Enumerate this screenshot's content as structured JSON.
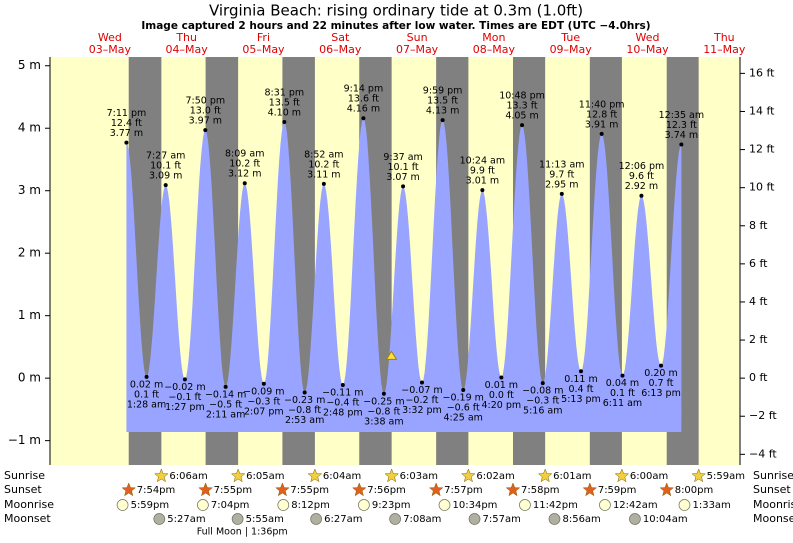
{
  "chart_data": {
    "type": "tide",
    "title": "Virginia Beach: rising  ordinary tide at 0.3m (1.0ft)",
    "subtitle": "Image captured 2 hours and 22 minutes after low water. Times are EDT (UTC −4.0hrs)",
    "xlim": [
      -4.7,
      210.9
    ],
    "ylim": [
      -1.39,
      5.14
    ],
    "y2lim": [
      -4.56,
      16.86
    ],
    "yticks": [
      {
        "value": -1,
        "label": "−1 m"
      },
      {
        "value": 0,
        "label": "0 m"
      },
      {
        "value": 1,
        "label": "1 m"
      },
      {
        "value": 2,
        "label": "2 m"
      },
      {
        "value": 3,
        "label": "3 m"
      },
      {
        "value": 4,
        "label": "4 m"
      },
      {
        "value": 5,
        "label": "5 m"
      }
    ],
    "y2ticks": [
      {
        "value": -4,
        "label": "−4 ft"
      },
      {
        "value": -2,
        "label": "−2 ft"
      },
      {
        "value": 0,
        "label": "0 ft"
      },
      {
        "value": 2,
        "label": "2 ft"
      },
      {
        "value": 4,
        "label": "4 ft"
      },
      {
        "value": 6,
        "label": "6 ft"
      },
      {
        "value": 8,
        "label": "8 ft"
      },
      {
        "value": 10,
        "label": "10 ft"
      },
      {
        "value": 12,
        "label": "12 ft"
      },
      {
        "value": 14,
        "label": "14 ft"
      },
      {
        "value": 16,
        "label": "16 ft"
      }
    ],
    "days": [
      {
        "x": 14,
        "weekday": "Wed",
        "date": "03–May"
      },
      {
        "x": 38,
        "weekday": "Thu",
        "date": "04–May"
      },
      {
        "x": 62,
        "weekday": "Fri",
        "date": "05–May"
      },
      {
        "x": 86,
        "weekday": "Sat",
        "date": "06–May"
      },
      {
        "x": 110,
        "weekday": "Sun",
        "date": "07–May"
      },
      {
        "x": 134,
        "weekday": "Mon",
        "date": "08–May"
      },
      {
        "x": 158,
        "weekday": "Tue",
        "date": "09–May"
      },
      {
        "x": 182,
        "weekday": "Wed",
        "date": "10–May"
      },
      {
        "x": 206,
        "weekday": "Thu",
        "date": "11–May"
      }
    ],
    "colors": {
      "day": "#ffffc8",
      "night": "#808080",
      "water": "#98a4ff",
      "text": "#e00000"
    },
    "tides": [
      {
        "kind": "high",
        "x": 19.18,
        "time": "7:11 pm",
        "m": 3.77,
        "m_label": "3.77 m",
        "ft_label": "12.4 ft"
      },
      {
        "kind": "low",
        "x": 25.47,
        "time": "1:28 am",
        "m": 0.02,
        "m_label": "0.02 m",
        "ft_label": "0.1 ft"
      },
      {
        "kind": "high",
        "x": 31.45,
        "time": "7:27 am",
        "m": 3.09,
        "m_label": "3.09 m",
        "ft_label": "10.1 ft"
      },
      {
        "kind": "low",
        "x": 37.45,
        "time": "1:27 pm",
        "m": -0.02,
        "m_label": "−0.02 m",
        "ft_label": "−0.1 ft"
      },
      {
        "kind": "high",
        "x": 43.83,
        "time": "7:50 pm",
        "m": 3.97,
        "m_label": "3.97 m",
        "ft_label": "13.0 ft"
      },
      {
        "kind": "low",
        "x": 50.18,
        "time": "2:11 am",
        "m": -0.14,
        "m_label": "−0.14 m",
        "ft_label": "−0.5 ft"
      },
      {
        "kind": "high",
        "x": 56.15,
        "time": "8:09 am",
        "m": 3.12,
        "m_label": "3.12 m",
        "ft_label": "10.2 ft"
      },
      {
        "kind": "low",
        "x": 62.12,
        "time": "2:07 pm",
        "m": -0.09,
        "m_label": "−0.09 m",
        "ft_label": "−0.3 ft"
      },
      {
        "kind": "high",
        "x": 68.52,
        "time": "8:31 pm",
        "m": 4.1,
        "m_label": "4.10 m",
        "ft_label": "13.5 ft"
      },
      {
        "kind": "low",
        "x": 74.88,
        "time": "2:53 am",
        "m": -0.23,
        "m_label": "−0.23 m",
        "ft_label": "−0.8 ft"
      },
      {
        "kind": "high",
        "x": 80.87,
        "time": "8:52 am",
        "m": 3.11,
        "m_label": "3.11 m",
        "ft_label": "10.2 ft"
      },
      {
        "kind": "low",
        "x": 86.8,
        "time": "2:48 pm",
        "m": -0.11,
        "m_label": "−0.11 m",
        "ft_label": "−0.4 ft"
      },
      {
        "kind": "high",
        "x": 93.23,
        "time": "9:14 pm",
        "m": 4.16,
        "m_label": "4.16 m",
        "ft_label": "13.6 ft"
      },
      {
        "kind": "low",
        "x": 99.63,
        "time": "3:38 am",
        "m": -0.25,
        "m_label": "−0.25 m",
        "ft_label": "−0.8 ft"
      },
      {
        "kind": "high",
        "x": 105.62,
        "time": "9:37 am",
        "m": 3.07,
        "m_label": "3.07 m",
        "ft_label": "10.1 ft"
      },
      {
        "kind": "low",
        "x": 111.53,
        "time": "3:32 pm",
        "m": -0.07,
        "m_label": "−0.07 m",
        "ft_label": "−0.2 ft"
      },
      {
        "kind": "high",
        "x": 117.98,
        "time": "9:59 pm",
        "m": 4.13,
        "m_label": "4.13 m",
        "ft_label": "13.5 ft"
      },
      {
        "kind": "low",
        "x": 124.42,
        "time": "4:25 am",
        "m": -0.19,
        "m_label": "−0.19 m",
        "ft_label": "−0.6 ft"
      },
      {
        "kind": "high",
        "x": 130.4,
        "time": "10:24 am",
        "m": 3.01,
        "m_label": "3.01 m",
        "ft_label": "9.9 ft"
      },
      {
        "kind": "low",
        "x": 136.33,
        "time": "4:20 pm",
        "m": 0.01,
        "m_label": "0.01 m",
        "ft_label": "0.0 ft"
      },
      {
        "kind": "high",
        "x": 142.8,
        "time": "10:48 pm",
        "m": 4.05,
        "m_label": "4.05 m",
        "ft_label": "13.3 ft"
      },
      {
        "kind": "low",
        "x": 149.27,
        "time": "5:16 am",
        "m": -0.08,
        "m_label": "−0.08 m",
        "ft_label": "−0.3 ft"
      },
      {
        "kind": "high",
        "x": 155.22,
        "time": "11:13 am",
        "m": 2.95,
        "m_label": "2.95 m",
        "ft_label": "9.7 ft"
      },
      {
        "kind": "low",
        "x": 161.22,
        "time": "5:13 pm",
        "m": 0.11,
        "m_label": "0.11 m",
        "ft_label": "0.4 ft"
      },
      {
        "kind": "high",
        "x": 167.67,
        "time": "11:40 pm",
        "m": 3.91,
        "m_label": "3.91 m",
        "ft_label": "12.8 ft"
      },
      {
        "kind": "low",
        "x": 174.18,
        "time": "6:11 am",
        "m": 0.04,
        "m_label": "0.04 m",
        "ft_label": "0.1 ft"
      },
      {
        "kind": "high",
        "x": 180.1,
        "time": "12:06 pm",
        "m": 2.92,
        "m_label": "2.92 m",
        "ft_label": "9.6 ft"
      },
      {
        "kind": "low",
        "x": 186.22,
        "time": "6:13 pm",
        "m": 0.2,
        "m_label": "0.20 m",
        "ft_label": "0.7 ft"
      },
      {
        "kind": "high",
        "x": 192.58,
        "time": "12:35 am",
        "m": 3.74,
        "m_label": "3.74 m",
        "ft_label": "12.3 ft"
      }
    ],
    "now": {
      "x": 102,
      "m": 0.3
    },
    "row_labels": {
      "sunrise": "Sunrise",
      "sunset": "Sunset",
      "moonrise": "Moonrise",
      "moonset": "Moonset"
    },
    "sunrise": [
      {
        "x": 30.1,
        "label": "6:06am"
      },
      {
        "x": 54.08,
        "label": "6:05am"
      },
      {
        "x": 78.07,
        "label": "6:04am"
      },
      {
        "x": 102.05,
        "label": "6:03am"
      },
      {
        "x": 126.03,
        "label": "6:02am"
      },
      {
        "x": 150.02,
        "label": "6:01am"
      },
      {
        "x": 174,
        "label": "6:00am"
      },
      {
        "x": 197.98,
        "label": "5:59am"
      }
    ],
    "sunset": [
      {
        "x": 19.9,
        "label": "7:54pm"
      },
      {
        "x": 43.92,
        "label": "7:55pm"
      },
      {
        "x": 67.92,
        "label": "7:55pm"
      },
      {
        "x": 91.93,
        "label": "7:56pm"
      },
      {
        "x": 115.95,
        "label": "7:57pm"
      },
      {
        "x": 139.97,
        "label": "7:58pm"
      },
      {
        "x": 163.98,
        "label": "7:59pm"
      },
      {
        "x": 188,
        "label": "8:00pm"
      }
    ],
    "moonrise": [
      {
        "x": 17.98,
        "label": "5:59pm"
      },
      {
        "x": 43.07,
        "label": "7:04pm"
      },
      {
        "x": 68.2,
        "label": "8:12pm"
      },
      {
        "x": 93.38,
        "label": "9:23pm"
      },
      {
        "x": 118.57,
        "label": "10:34pm"
      },
      {
        "x": 143.7,
        "label": "11:42pm"
      },
      {
        "x": 168.7,
        "label": "12:42am"
      },
      {
        "x": 193.55,
        "label": "1:33am"
      }
    ],
    "moonset": [
      {
        "x": 29.45,
        "label": "5:27am"
      },
      {
        "x": 53.92,
        "label": "5:55am"
      },
      {
        "x": 78.45,
        "label": "6:27am"
      },
      {
        "x": 103.13,
        "label": "7:08am"
      },
      {
        "x": 127.95,
        "label": "7:57am"
      },
      {
        "x": 152.93,
        "label": "8:56am"
      },
      {
        "x": 178.07,
        "label": "10:04am"
      }
    ],
    "full_moon": {
      "x": 61.6,
      "label": "Full Moon | 1:36pm"
    }
  }
}
